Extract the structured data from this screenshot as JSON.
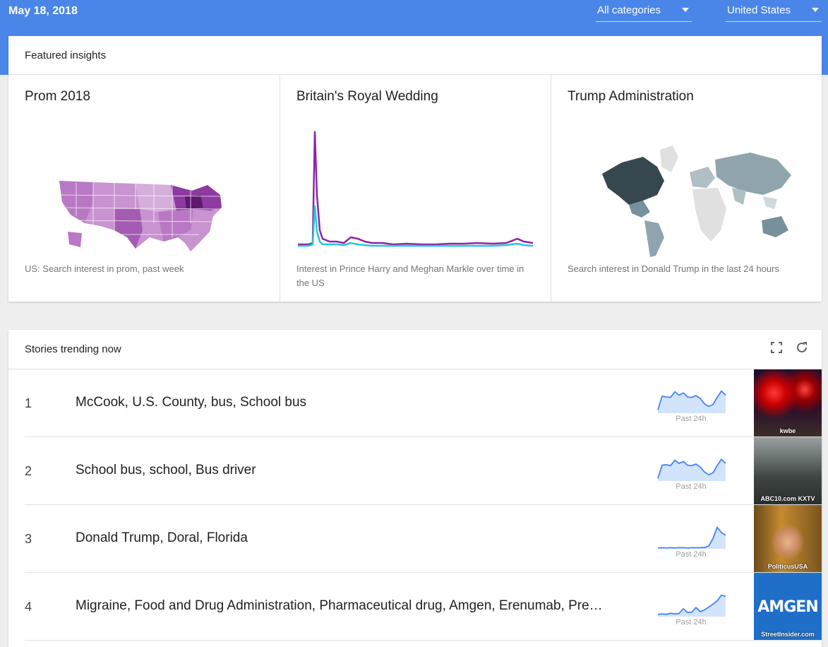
{
  "topbar": {
    "date": "May 18, 2018",
    "category_select": "All categories",
    "geo_select": "United States",
    "bg_color": "#4a86e8"
  },
  "featured": {
    "header": "Featured insights",
    "insights": [
      {
        "title": "Prom 2018",
        "description": "US: Search interest in prom, past week",
        "visual": "us-state-choropleth"
      },
      {
        "title": "Britain's Royal Wedding",
        "description": "Interest in Prince Harry and Meghan Markle over time in the US",
        "visual": "line-chart"
      },
      {
        "title": "Trump Administration",
        "description": "Search interest in Donald Trump in the last 24 hours",
        "visual": "world-choropleth"
      }
    ]
  },
  "stories": {
    "header": "Stories trending now",
    "icons": [
      "expand-icon",
      "refresh-icon"
    ],
    "items": [
      {
        "rank": "1",
        "title": "McCook, U.S. County, bus, School bus",
        "spark_label": "Past 24h",
        "image_source": "kwbe",
        "spark": [
          0.15,
          0.75,
          0.72,
          0.7,
          0.95,
          0.8,
          0.9,
          0.72,
          0.7,
          0.78,
          0.65,
          0.42,
          0.3,
          0.38,
          0.7,
          0.98,
          0.8
        ]
      },
      {
        "rank": "2",
        "title": "School bus, school, Bus driver",
        "spark_label": "Past 24h",
        "image_source": "ABC10.com KXTV",
        "spark": [
          0.12,
          0.7,
          0.72,
          0.68,
          0.92,
          0.78,
          0.86,
          0.7,
          0.68,
          0.75,
          0.62,
          0.4,
          0.28,
          0.36,
          0.68,
          0.96,
          0.78
        ]
      },
      {
        "rank": "3",
        "title": "Donald Trump, Doral, Florida",
        "spark_label": "Past 24h",
        "image_source": "PoliticusUSA",
        "spark": [
          0.04,
          0.05,
          0.04,
          0.05,
          0.04,
          0.05,
          0.05,
          0.04,
          0.05,
          0.05,
          0.05,
          0.06,
          0.12,
          0.45,
          0.95,
          0.72,
          0.6
        ]
      },
      {
        "rank": "4",
        "title": "Migraine, Food and Drug Administration, Pharmaceutical drug, Amgen, Erenumab, Pre…",
        "spark_label": "Past 24h",
        "image_source": "StreetInsider.com",
        "image_logo": "AMGEN",
        "spark": [
          0.1,
          0.12,
          0.1,
          0.15,
          0.12,
          0.14,
          0.35,
          0.18,
          0.2,
          0.4,
          0.22,
          0.3,
          0.42,
          0.55,
          0.7,
          0.95,
          0.9
        ]
      }
    ]
  },
  "colors": {
    "spark_line": "#4285f4",
    "spark_fill": "#d2e3fc",
    "wedding_line_harry": "#8e24aa",
    "wedding_line_meghan": "#26c6da"
  }
}
